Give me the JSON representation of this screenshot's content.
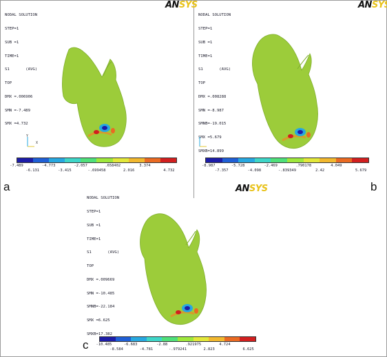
{
  "colors": {
    "contour": [
      "#1c1ca8",
      "#1f5fd6",
      "#27a8e0",
      "#3ed6c8",
      "#4fe07a",
      "#9fe83c",
      "#e3e83a",
      "#f2b82e",
      "#ea6a22",
      "#d21f1f"
    ],
    "tooth_body": "#9ccc3a",
    "logo_ansys_dark": "#111111",
    "logo_ansys_yellow": "#e8c21a"
  },
  "logo": {
    "part1": "AN",
    "part2": "SYS"
  },
  "panels": [
    {
      "letter": "a",
      "info": [
        "NODAL SOLUTION",
        "STEP=1",
        "SUB =1",
        "TIME=1",
        "S1       (AVG)",
        "TOP",
        "DMX =.006906",
        "SMN =-7.489",
        "SMX =4.732"
      ],
      "legend_top": [
        "-7.489",
        "-4.773",
        "-2.057",
        ".658402",
        "3.374"
      ],
      "legend_bottom": [
        "-6.131",
        "-3.415",
        "-.699458",
        "2.016",
        "4.732"
      ]
    },
    {
      "letter": "b",
      "info": [
        "NODAL SOLUTION",
        "STEP=1",
        "SUB =1",
        "TIME=1",
        "S1       (AVG)",
        "TOP",
        "DMX =.008288",
        "SMN =-8.987",
        "SMNB=-19.015",
        "SMX =5.679",
        "SMXB=14.899"
      ],
      "legend_top": [
        "-8.987",
        "-5.728",
        "-2.469",
        ".790178",
        "4.049"
      ],
      "legend_bottom": [
        "-7.357",
        "-4.098",
        "-.839349",
        "2.42",
        "5.679"
      ]
    },
    {
      "letter": "c",
      "info": [
        "NODAL SOLUTION",
        "STEP=1",
        "SUB =1",
        "TIME=1",
        "S1       (AVG)",
        "TOP",
        "DMX =.009669",
        "SMN =-10.485",
        "SMNB=-22.184",
        "SMX =6.625",
        "SMXB=17.382"
      ],
      "legend_top": [
        "-10.485",
        "-6.683",
        "-2.88",
        ".921975",
        "4.724"
      ],
      "legend_bottom": [
        "-8.584",
        "-4.781",
        "-.979241",
        "2.823",
        "6.625"
      ]
    }
  ],
  "axis_labels": {
    "y": "Y",
    "x": "X"
  }
}
